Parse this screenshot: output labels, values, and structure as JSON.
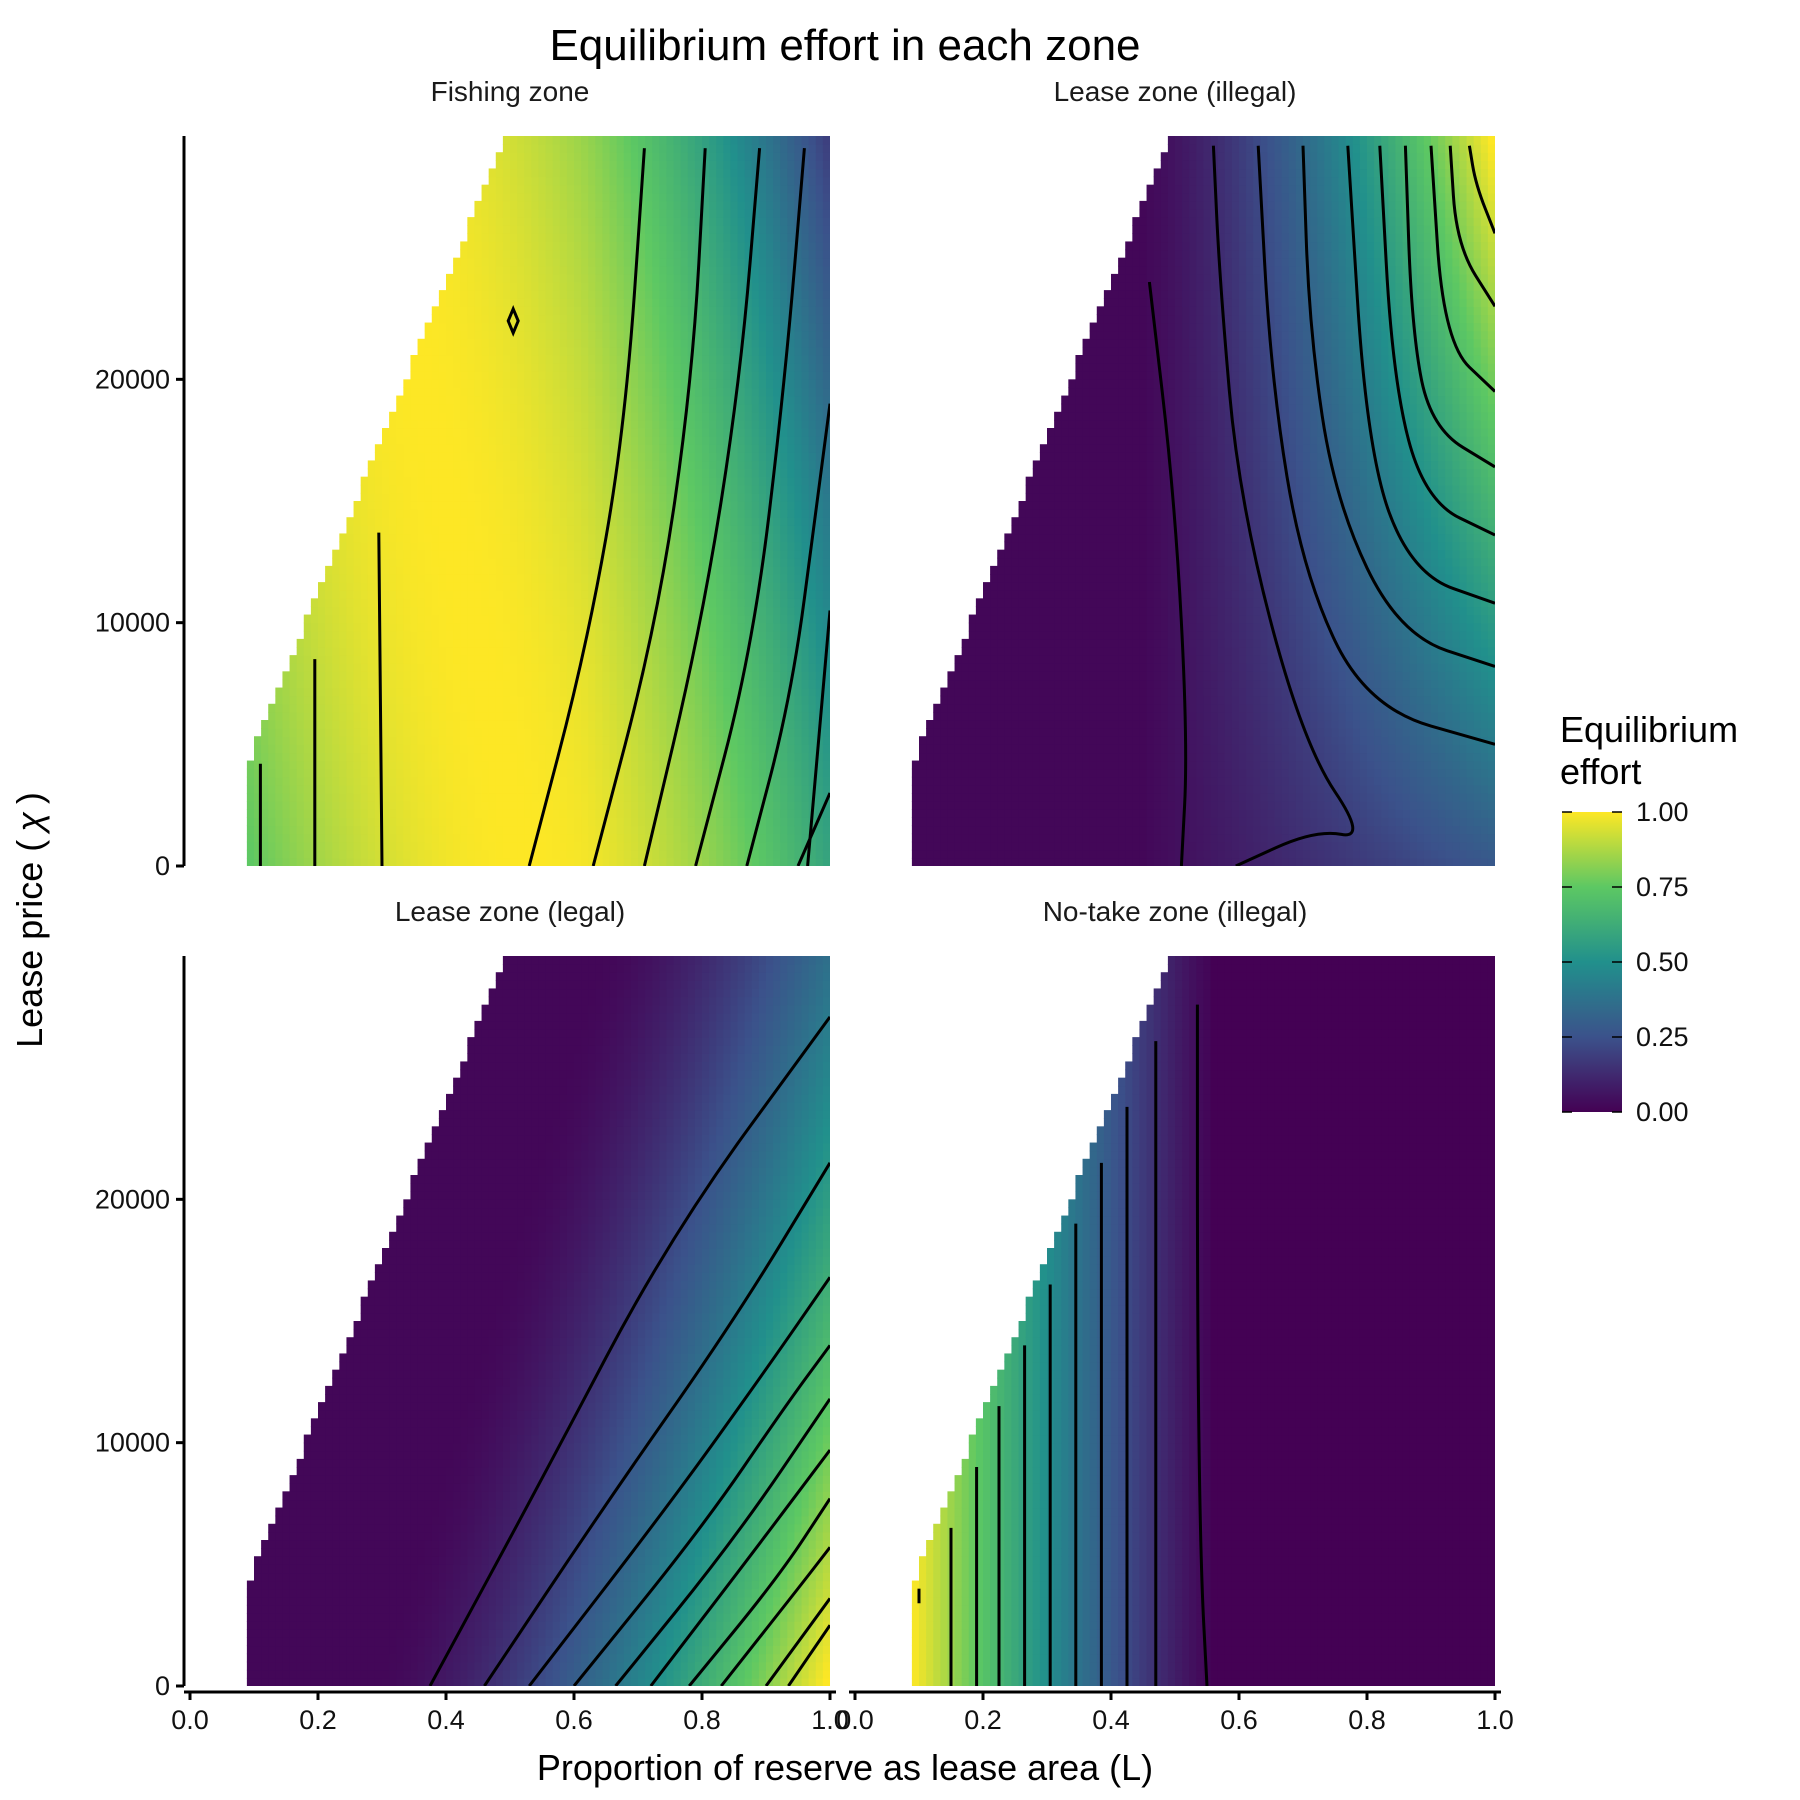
{
  "chart_data": {
    "type": "heatmap",
    "title": "Equilibrium effort in each zone",
    "xlabel": "Proportion of reserve as lease area (L)",
    "ylabel_text": "Lease price (",
    "ylabel_symbol": "χ",
    "ylabel_close": ")",
    "xlim": [
      0,
      1
    ],
    "ylim": [
      0,
      30000
    ],
    "x_ticks": [
      0,
      0.2,
      0.4,
      0.6,
      0.8,
      1.0
    ],
    "x_tick_labels": [
      "0.0",
      "0.2",
      "0.4",
      "0.6",
      "0.8",
      "1.0"
    ],
    "y_ticks": [
      0,
      10000,
      20000
    ],
    "y_tick_labels": [
      "0",
      "10000",
      "20000"
    ],
    "grid": false,
    "legend": {
      "title_line1": "Equilibrium",
      "title_line2": "effort",
      "position": "right",
      "breaks": [
        1.0,
        0.75,
        0.5,
        0.25,
        0.0
      ],
      "labels": [
        "1.00",
        "0.75",
        "0.50",
        "0.25",
        "0.00"
      ],
      "range": [
        0,
        1
      ]
    },
    "colormap": "viridis",
    "colormap_stops": [
      "#440154",
      "#3b528b",
      "#21908c",
      "#5dc863",
      "#fde725"
    ],
    "feasible_region": {
      "x_min": 0.09,
      "boundary_y_at_x_min": 4200,
      "boundary_slope_per_unit_L": 64000
    },
    "panels": [
      {
        "id": "fishing",
        "label": "Fishing zone",
        "effort_model": "fishing",
        "contours": [
          [
            [
              0.11,
              0
            ],
            [
              0.11,
              4200
            ]
          ],
          [
            [
              0.195,
              0
            ],
            [
              0.195,
              8500
            ]
          ],
          [
            [
              0.3,
              0
            ],
            [
              0.295,
              13700
            ]
          ],
          [
            [
              0.53,
              0
            ],
            [
              0.62,
              9000
            ],
            [
              0.68,
              18000
            ],
            [
              0.71,
              29500
            ]
          ],
          [
            [
              0.63,
              0
            ],
            [
              0.73,
              10000
            ],
            [
              0.785,
              20000
            ],
            [
              0.805,
              29500
            ]
          ],
          [
            [
              0.71,
              0
            ],
            [
              0.8,
              10000
            ],
            [
              0.86,
              20000
            ],
            [
              0.89,
              29500
            ]
          ],
          [
            [
              0.79,
              0
            ],
            [
              0.88,
              9000
            ],
            [
              0.93,
              20000
            ],
            [
              0.96,
              29500
            ]
          ],
          [
            [
              0.87,
              0
            ],
            [
              0.94,
              7000
            ],
            [
              0.98,
              15000
            ],
            [
              1.0,
              19000
            ]
          ],
          [
            [
              0.95,
              0
            ],
            [
              1.0,
              3000
            ]
          ],
          [
            [
              0.965,
              0
            ],
            [
              1.0,
              10500
            ]
          ]
        ],
        "markers": [
          {
            "x": 0.505,
            "y": 22400,
            "shape": "diamond"
          }
        ]
      },
      {
        "id": "lease-illegal",
        "label": "Lease zone (illegal)",
        "effort_model": "lease_illegal",
        "contours": [
          [
            [
              0.51,
              0
            ],
            [
              0.52,
              5000
            ],
            [
              0.5,
              15000
            ],
            [
              0.46,
              24000
            ]
          ],
          [
            [
              0.595,
              0
            ],
            [
              0.72,
              1500
            ],
            [
              0.8,
              1100
            ],
            [
              0.7,
              5000
            ],
            [
              0.6,
              15000
            ],
            [
              0.57,
              24000
            ],
            [
              0.56,
              29600
            ]
          ],
          [
            [
              1.0,
              5000
            ],
            [
              0.8,
              6500
            ],
            [
              0.7,
              12000
            ],
            [
              0.65,
              20000
            ],
            [
              0.63,
              29600
            ]
          ],
          [
            [
              1.0,
              8200
            ],
            [
              0.85,
              9500
            ],
            [
              0.75,
              15000
            ],
            [
              0.71,
              22000
            ],
            [
              0.7,
              29600
            ]
          ],
          [
            [
              1.0,
              10800
            ],
            [
              0.87,
              12000
            ],
            [
              0.8,
              17000
            ],
            [
              0.77,
              29600
            ]
          ],
          [
            [
              1.0,
              13600
            ],
            [
              0.89,
              15000
            ],
            [
              0.84,
              20000
            ],
            [
              0.82,
              29600
            ]
          ],
          [
            [
              1.0,
              16400
            ],
            [
              0.9,
              18000
            ],
            [
              0.87,
              22000
            ],
            [
              0.86,
              29600
            ]
          ],
          [
            [
              1.0,
              19500
            ],
            [
              0.92,
              21500
            ],
            [
              0.9,
              29600
            ]
          ],
          [
            [
              1.0,
              23000
            ],
            [
              0.94,
              25500
            ],
            [
              0.93,
              29600
            ]
          ],
          [
            [
              1.0,
              26000
            ],
            [
              0.97,
              28000
            ],
            [
              0.96,
              29600
            ]
          ]
        ],
        "markers": []
      },
      {
        "id": "lease-legal",
        "label": "Lease zone (legal)",
        "effort_model": "lease_legal",
        "contours": [
          [
            [
              0.375,
              0
            ],
            [
              0.55,
              8500
            ],
            [
              0.75,
              18500
            ],
            [
              1.0,
              27500
            ]
          ],
          [
            [
              0.46,
              0
            ],
            [
              0.65,
              7500
            ],
            [
              0.85,
              15000
            ],
            [
              1.0,
              21500
            ]
          ],
          [
            [
              0.53,
              0
            ],
            [
              0.75,
              7500
            ],
            [
              0.9,
              13000
            ],
            [
              1.0,
              16800
            ]
          ],
          [
            [
              0.6,
              0
            ],
            [
              0.8,
              6500
            ],
            [
              0.93,
              11500
            ],
            [
              1.0,
              14000
            ]
          ],
          [
            [
              0.665,
              0
            ],
            [
              0.85,
              6000
            ],
            [
              1.0,
              11800
            ]
          ],
          [
            [
              0.72,
              0
            ],
            [
              0.88,
              5500
            ],
            [
              1.0,
              9700
            ]
          ],
          [
            [
              0.78,
              0
            ],
            [
              0.92,
              4500
            ],
            [
              1.0,
              7700
            ]
          ],
          [
            [
              0.83,
              0
            ],
            [
              0.95,
              4000
            ],
            [
              1.0,
              5700
            ]
          ],
          [
            [
              0.9,
              0
            ],
            [
              1.0,
              3600
            ]
          ],
          [
            [
              0.935,
              0
            ],
            [
              1.0,
              2500
            ]
          ]
        ],
        "markers": []
      },
      {
        "id": "no-take-illegal",
        "label": "No-take zone (illegal)",
        "effort_model": "notake_illegal",
        "contours": [
          [
            [
              0.1,
              3400
            ],
            [
              0.1,
              4000
            ]
          ],
          [
            [
              0.15,
              0
            ],
            [
              0.15,
              6500
            ]
          ],
          [
            [
              0.19,
              0
            ],
            [
              0.19,
              9000
            ]
          ],
          [
            [
              0.225,
              0
            ],
            [
              0.225,
              11500
            ]
          ],
          [
            [
              0.265,
              0
            ],
            [
              0.265,
              14000
            ]
          ],
          [
            [
              0.305,
              0
            ],
            [
              0.305,
              16500
            ]
          ],
          [
            [
              0.345,
              0
            ],
            [
              0.345,
              19000
            ]
          ],
          [
            [
              0.385,
              0
            ],
            [
              0.385,
              21500
            ]
          ],
          [
            [
              0.425,
              0
            ],
            [
              0.425,
              23800
            ]
          ],
          [
            [
              0.47,
              0
            ],
            [
              0.47,
              26500
            ]
          ],
          [
            [
              0.55,
              0
            ],
            [
              0.54,
              5000
            ],
            [
              0.535,
              15000
            ],
            [
              0.535,
              28000
            ]
          ]
        ],
        "markers": []
      }
    ]
  }
}
